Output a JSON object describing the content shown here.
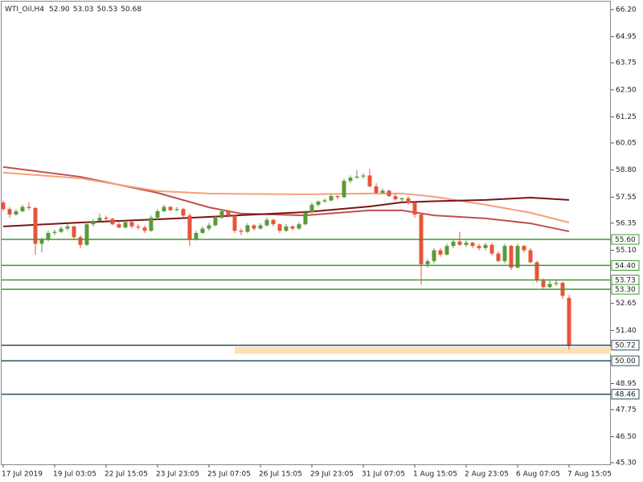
{
  "chart_data": {
    "type": "candlestick",
    "symbol": "WTI_Oil,H4",
    "quote_labels": [
      "52.90",
      "53.03",
      "50.53",
      "50.68"
    ],
    "categories": [
      "17 Jul 2019",
      null,
      null,
      null,
      null,
      null,
      null,
      null,
      "19 Jul 03:05",
      null,
      null,
      null,
      null,
      null,
      null,
      null,
      "22 Jul 15:05",
      null,
      null,
      null,
      null,
      null,
      null,
      null,
      "23 Jul 23:05",
      null,
      null,
      null,
      null,
      null,
      null,
      null,
      "25 Jul 07:05",
      null,
      null,
      null,
      null,
      null,
      null,
      null,
      "26 Jul 15:05",
      null,
      null,
      null,
      null,
      null,
      null,
      null,
      "29 Jul 23:05",
      null,
      null,
      null,
      null,
      null,
      null,
      null,
      "31 Jul 07:05",
      null,
      null,
      null,
      null,
      null,
      null,
      null,
      "1 Aug 15:05",
      null,
      null,
      null,
      null,
      null,
      null,
      null,
      "2 Aug 23:05",
      null,
      null,
      null,
      null,
      null,
      null,
      null,
      "6 Aug 07:05",
      null,
      null,
      null,
      null,
      null,
      null,
      null,
      "7 Aug 15:05"
    ],
    "ohlc": [
      [
        57.3,
        57.4,
        56.9,
        57.0
      ],
      [
        57.0,
        57.1,
        56.6,
        56.75
      ],
      [
        56.75,
        57.0,
        56.7,
        56.9
      ],
      [
        56.9,
        57.2,
        56.85,
        57.1
      ],
      [
        57.1,
        57.3,
        56.95,
        57.05
      ],
      [
        57.05,
        57.1,
        54.9,
        55.4
      ],
      [
        55.4,
        55.7,
        55.0,
        55.6
      ],
      [
        55.6,
        56.0,
        55.5,
        55.9
      ],
      [
        55.9,
        56.05,
        55.8,
        55.95
      ],
      [
        55.95,
        56.2,
        55.9,
        56.1
      ],
      [
        56.1,
        56.3,
        56.0,
        56.2
      ],
      [
        56.2,
        56.25,
        55.6,
        55.7
      ],
      [
        55.7,
        55.8,
        55.2,
        55.35
      ],
      [
        55.35,
        56.4,
        55.3,
        56.3
      ],
      [
        56.3,
        56.55,
        56.2,
        56.45
      ],
      [
        56.45,
        56.8,
        56.4,
        56.6
      ],
      [
        56.6,
        56.7,
        56.45,
        56.55
      ],
      [
        56.55,
        56.6,
        56.25,
        56.3
      ],
      [
        56.3,
        56.4,
        56.1,
        56.15
      ],
      [
        56.15,
        56.5,
        56.1,
        56.4
      ],
      [
        56.4,
        56.45,
        56.1,
        56.2
      ],
      [
        56.2,
        56.3,
        56.05,
        56.15
      ],
      [
        56.15,
        56.25,
        55.9,
        56.0
      ],
      [
        56.0,
        56.7,
        55.95,
        56.6
      ],
      [
        56.6,
        57.0,
        56.5,
        56.9
      ],
      [
        56.9,
        57.2,
        56.85,
        57.1
      ],
      [
        57.1,
        57.15,
        56.9,
        56.95
      ],
      [
        56.95,
        57.1,
        56.9,
        57.0
      ],
      [
        57.0,
        57.05,
        56.6,
        56.7
      ],
      [
        56.7,
        56.8,
        55.3,
        55.6
      ],
      [
        55.6,
        56.0,
        55.55,
        55.9
      ],
      [
        55.9,
        56.2,
        55.85,
        56.1
      ],
      [
        56.1,
        56.35,
        56.0,
        56.25
      ],
      [
        56.25,
        56.7,
        56.2,
        56.6
      ],
      [
        56.6,
        57.0,
        56.55,
        56.9
      ],
      [
        56.9,
        56.95,
        56.6,
        56.7
      ],
      [
        56.7,
        56.75,
        55.9,
        56.0
      ],
      [
        56.0,
        56.1,
        55.8,
        55.95
      ],
      [
        55.95,
        56.35,
        55.9,
        56.25
      ],
      [
        56.25,
        56.3,
        56.0,
        56.1
      ],
      [
        56.1,
        56.35,
        56.05,
        56.25
      ],
      [
        56.25,
        56.6,
        56.2,
        56.5
      ],
      [
        56.5,
        56.55,
        56.2,
        56.3
      ],
      [
        56.3,
        56.35,
        55.9,
        56.0
      ],
      [
        56.0,
        56.3,
        55.95,
        56.2
      ],
      [
        56.2,
        56.25,
        56.0,
        56.1
      ],
      [
        56.1,
        56.4,
        56.05,
        56.3
      ],
      [
        56.3,
        56.95,
        56.25,
        56.85
      ],
      [
        56.85,
        57.3,
        56.8,
        57.2
      ],
      [
        57.2,
        57.4,
        57.1,
        57.35
      ],
      [
        57.35,
        57.5,
        57.3,
        57.4
      ],
      [
        57.4,
        57.7,
        57.35,
        57.6
      ],
      [
        57.6,
        57.65,
        57.45,
        57.55
      ],
      [
        57.55,
        58.4,
        57.5,
        58.3
      ],
      [
        58.3,
        58.55,
        58.2,
        58.45
      ],
      [
        58.45,
        58.8,
        58.4,
        58.5
      ],
      [
        58.5,
        58.65,
        58.4,
        58.55
      ],
      [
        58.55,
        58.85,
        58.0,
        58.05
      ],
      [
        58.05,
        58.2,
        57.7,
        57.75
      ],
      [
        57.75,
        57.95,
        57.7,
        57.85
      ],
      [
        57.85,
        57.9,
        57.55,
        57.6
      ],
      [
        57.6,
        57.7,
        57.4,
        57.45
      ],
      [
        57.45,
        57.55,
        57.3,
        57.5
      ],
      [
        57.5,
        57.6,
        57.2,
        57.3
      ],
      [
        57.3,
        57.35,
        56.6,
        56.75
      ],
      [
        56.75,
        56.8,
        53.5,
        54.45
      ],
      [
        54.45,
        54.7,
        54.3,
        54.6
      ],
      [
        54.6,
        55.2,
        54.5,
        55.1
      ],
      [
        55.1,
        55.2,
        54.8,
        54.9
      ],
      [
        54.9,
        55.4,
        54.85,
        55.3
      ],
      [
        55.3,
        55.6,
        55.2,
        55.5
      ],
      [
        55.5,
        55.95,
        55.3,
        55.35
      ],
      [
        55.35,
        55.55,
        55.25,
        55.45
      ],
      [
        55.45,
        55.5,
        55.2,
        55.3
      ],
      [
        55.3,
        55.4,
        55.1,
        55.2
      ],
      [
        55.2,
        55.45,
        55.1,
        55.35
      ],
      [
        55.35,
        55.45,
        54.85,
        54.95
      ],
      [
        54.95,
        55.05,
        54.55,
        54.6
      ],
      [
        54.6,
        55.4,
        54.5,
        55.3
      ],
      [
        55.3,
        55.35,
        54.2,
        54.3
      ],
      [
        54.3,
        55.4,
        54.25,
        55.3
      ],
      [
        55.3,
        55.35,
        55.0,
        55.1
      ],
      [
        55.1,
        55.2,
        54.5,
        54.55
      ],
      [
        54.55,
        54.6,
        53.6,
        53.7
      ],
      [
        53.7,
        53.8,
        53.3,
        53.4
      ],
      [
        53.4,
        53.7,
        53.35,
        53.55
      ],
      [
        53.55,
        53.75,
        53.45,
        53.6
      ],
      [
        53.6,
        53.65,
        52.85,
        53.0
      ],
      [
        52.9,
        53.03,
        50.53,
        50.68
      ]
    ],
    "up_color": "#5b9a3a",
    "down_color": "#e8543a",
    "series": [
      {
        "color": "#c0504d",
        "x": [
          0,
          12,
          24,
          32,
          37,
          47,
          57,
          62,
          67,
          75,
          82,
          88
        ],
        "values": [
          58.94,
          58.49,
          57.75,
          57.08,
          56.79,
          56.71,
          56.94,
          56.94,
          56.71,
          56.57,
          56.34,
          55.97
        ]
      },
      {
        "color": "#f4a07a",
        "x": [
          0,
          12,
          24,
          32,
          37,
          47,
          57,
          62,
          67,
          75,
          82,
          88
        ],
        "values": [
          58.68,
          58.42,
          57.83,
          57.72,
          57.7,
          57.68,
          57.72,
          57.72,
          57.57,
          57.2,
          56.83,
          56.38
        ]
      },
      {
        "color": "#7b1416",
        "x": [
          0,
          12,
          24,
          32,
          37,
          47,
          57,
          62,
          67,
          75,
          82,
          88
        ],
        "values": [
          56.2,
          56.38,
          56.53,
          56.64,
          56.72,
          56.86,
          57.12,
          57.31,
          57.36,
          57.42,
          57.53,
          57.42
        ]
      }
    ],
    "levels": [
      {
        "value": 55.6,
        "label": "55.60",
        "color": "#3c9a2e"
      },
      {
        "value": 54.4,
        "label": "54.40",
        "color": "#3c9a2e"
      },
      {
        "value": 53.73,
        "label": "53.73",
        "color": "#3c9a2e"
      },
      {
        "value": 53.3,
        "label": "53.30",
        "color": "#3c9a2e"
      },
      {
        "value": 50.72,
        "label": "50.72",
        "color": "#2f4f5f"
      },
      {
        "value": 50,
        "label": "50.00",
        "color": "#2f4f5f"
      },
      {
        "value": 48.46,
        "label": "48.46",
        "color": "#2f4f5f"
      }
    ],
    "zone": {
      "from": 50.33,
      "to": 50.64,
      "start": 36,
      "color": "#fde0b4"
    },
    "ylim": [
      45.3,
      66.2
    ],
    "yticks": [
      {
        "value": 66.2,
        "label": "66.20"
      },
      {
        "value": 64.95,
        "label": "64.95"
      },
      {
        "value": 63.75,
        "label": "63.75"
      },
      {
        "value": 62.5,
        "label": "62.50"
      },
      {
        "value": 61.25,
        "label": "61.25"
      },
      {
        "value": 60.05,
        "label": "60.05"
      },
      {
        "value": 58.8,
        "label": "58.80"
      },
      {
        "value": 57.55,
        "label": "57.55"
      },
      {
        "value": 56.35,
        "label": "56.35"
      },
      {
        "value": 55.1,
        "label": "55.10"
      },
      {
        "value": 52.65,
        "label": "52.65"
      },
      {
        "value": 51.4,
        "label": "51.40"
      },
      {
        "value": 48.95,
        "label": "48.95"
      },
      {
        "value": 47.75,
        "label": "47.75"
      },
      {
        "value": 46.5,
        "label": "46.50"
      },
      {
        "value": 45.3,
        "label": "45.30"
      }
    ],
    "grid": false
  }
}
